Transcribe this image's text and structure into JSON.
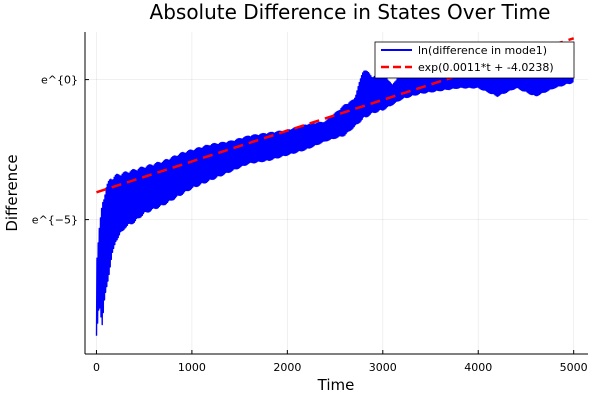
{
  "chart_data": {
    "type": "line",
    "title": "Absolute Difference in States Over Time",
    "xlabel": "Time",
    "ylabel": "Difference",
    "xlim": [
      -120,
      5150
    ],
    "ylim": [
      -9.8,
      1.7
    ],
    "x_ticks": [
      0,
      1000,
      2000,
      3000,
      4000,
      5000
    ],
    "y_ticks": [
      {
        "value": 0,
        "label": "e^{0}"
      },
      {
        "value": -5,
        "label": "e^{−5}"
      }
    ],
    "grid": true,
    "legend_position": "top-right",
    "series": [
      {
        "name": "ln(difference in mode1)",
        "style": "oscillating",
        "color": "#0000ff",
        "envelope": {
          "x": [
            0,
            30,
            60,
            100,
            150,
            200,
            300,
            400,
            500,
            700,
            900,
            1000,
            1200,
            1400,
            1600,
            1800,
            2000,
            2200,
            2400,
            2600,
            2700,
            2800,
            2900,
            3000,
            3100,
            3200,
            3400,
            3600,
            3800,
            4000,
            4200,
            4400,
            4600,
            4800,
            5000
          ],
          "upper": [
            -6.5,
            -5.3,
            -4.4,
            -3.8,
            -3.5,
            -3.4,
            -3.3,
            -3.2,
            -3.1,
            -2.9,
            -2.6,
            -2.5,
            -2.3,
            -2.2,
            -2.0,
            -1.9,
            -1.8,
            -1.6,
            -1.5,
            -0.9,
            -0.7,
            0.4,
            0.1,
            0.3,
            -0.2,
            0.3,
            0.4,
            0.5,
            0.4,
            0.4,
            0.3,
            0.4,
            0.3,
            0.4,
            1.1
          ],
          "lower": [
            -9.3,
            -8.0,
            -8.8,
            -7.6,
            -6.6,
            -5.8,
            -5.3,
            -5.1,
            -4.8,
            -4.5,
            -4.1,
            -3.9,
            -3.6,
            -3.3,
            -3.0,
            -2.9,
            -2.7,
            -2.5,
            -2.2,
            -2.0,
            -1.7,
            -1.4,
            -1.2,
            -1.1,
            -0.9,
            -0.7,
            -0.5,
            -0.4,
            -0.3,
            -0.3,
            -0.6,
            -0.3,
            -0.6,
            -0.3,
            -0.1
          ]
        }
      },
      {
        "name": "exp(0.0011*t + -4.0238)",
        "style": "dashed",
        "color": "#ff0000",
        "slope": 0.0011,
        "intercept": -4.0238,
        "x_range": [
          0,
          5000
        ]
      }
    ]
  }
}
